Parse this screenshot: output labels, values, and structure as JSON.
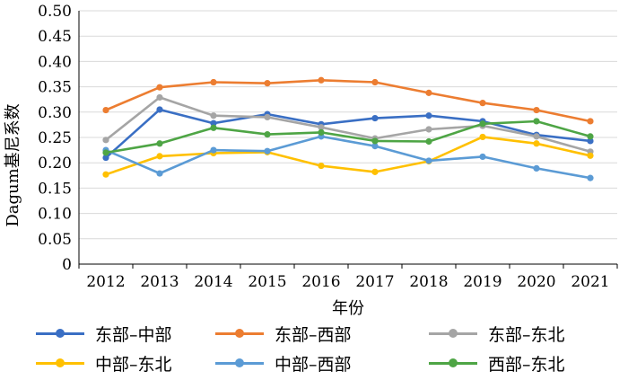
{
  "chart_data": {
    "type": "line",
    "xlabel": "年份",
    "ylabel": "Dagum基尼系数",
    "x": [
      "2012",
      "2013",
      "2014",
      "2015",
      "2016",
      "2017",
      "2018",
      "2019",
      "2020",
      "2021"
    ],
    "ylim": [
      0,
      0.5
    ],
    "yticks": [
      "0",
      "0.05",
      "0.10",
      "0.15",
      "0.20",
      "0.25",
      "0.30",
      "0.35",
      "0.40",
      "0.45",
      "0.50"
    ],
    "grid": "horizontal",
    "legend_position": "bottom",
    "series": [
      {
        "name": "东部–中部",
        "color": "#3a6fc4",
        "values": [
          0.21,
          0.305,
          0.278,
          0.296,
          0.276,
          0.288,
          0.293,
          0.282,
          0.255,
          0.243
        ]
      },
      {
        "name": "东部–西部",
        "color": "#ec7d31",
        "values": [
          0.304,
          0.349,
          0.359,
          0.357,
          0.363,
          0.359,
          0.338,
          0.318,
          0.304,
          0.282
        ]
      },
      {
        "name": "东部–东北",
        "color": "#a5a5a5",
        "values": [
          0.245,
          0.329,
          0.293,
          0.29,
          0.27,
          0.248,
          0.266,
          0.273,
          0.252,
          0.222
        ]
      },
      {
        "name": "中部–东北",
        "color": "#ffc000",
        "values": [
          0.177,
          0.213,
          0.219,
          0.221,
          0.194,
          0.182,
          0.203,
          0.251,
          0.238,
          0.214
        ]
      },
      {
        "name": "中部–西部",
        "color": "#5b9bd5",
        "values": [
          0.225,
          0.179,
          0.225,
          0.223,
          0.252,
          0.233,
          0.204,
          0.212,
          0.189,
          0.17
        ]
      },
      {
        "name": "西部–东北",
        "color": "#4ea545",
        "values": [
          0.22,
          0.238,
          0.269,
          0.256,
          0.26,
          0.243,
          0.242,
          0.277,
          0.282,
          0.252
        ]
      }
    ]
  }
}
